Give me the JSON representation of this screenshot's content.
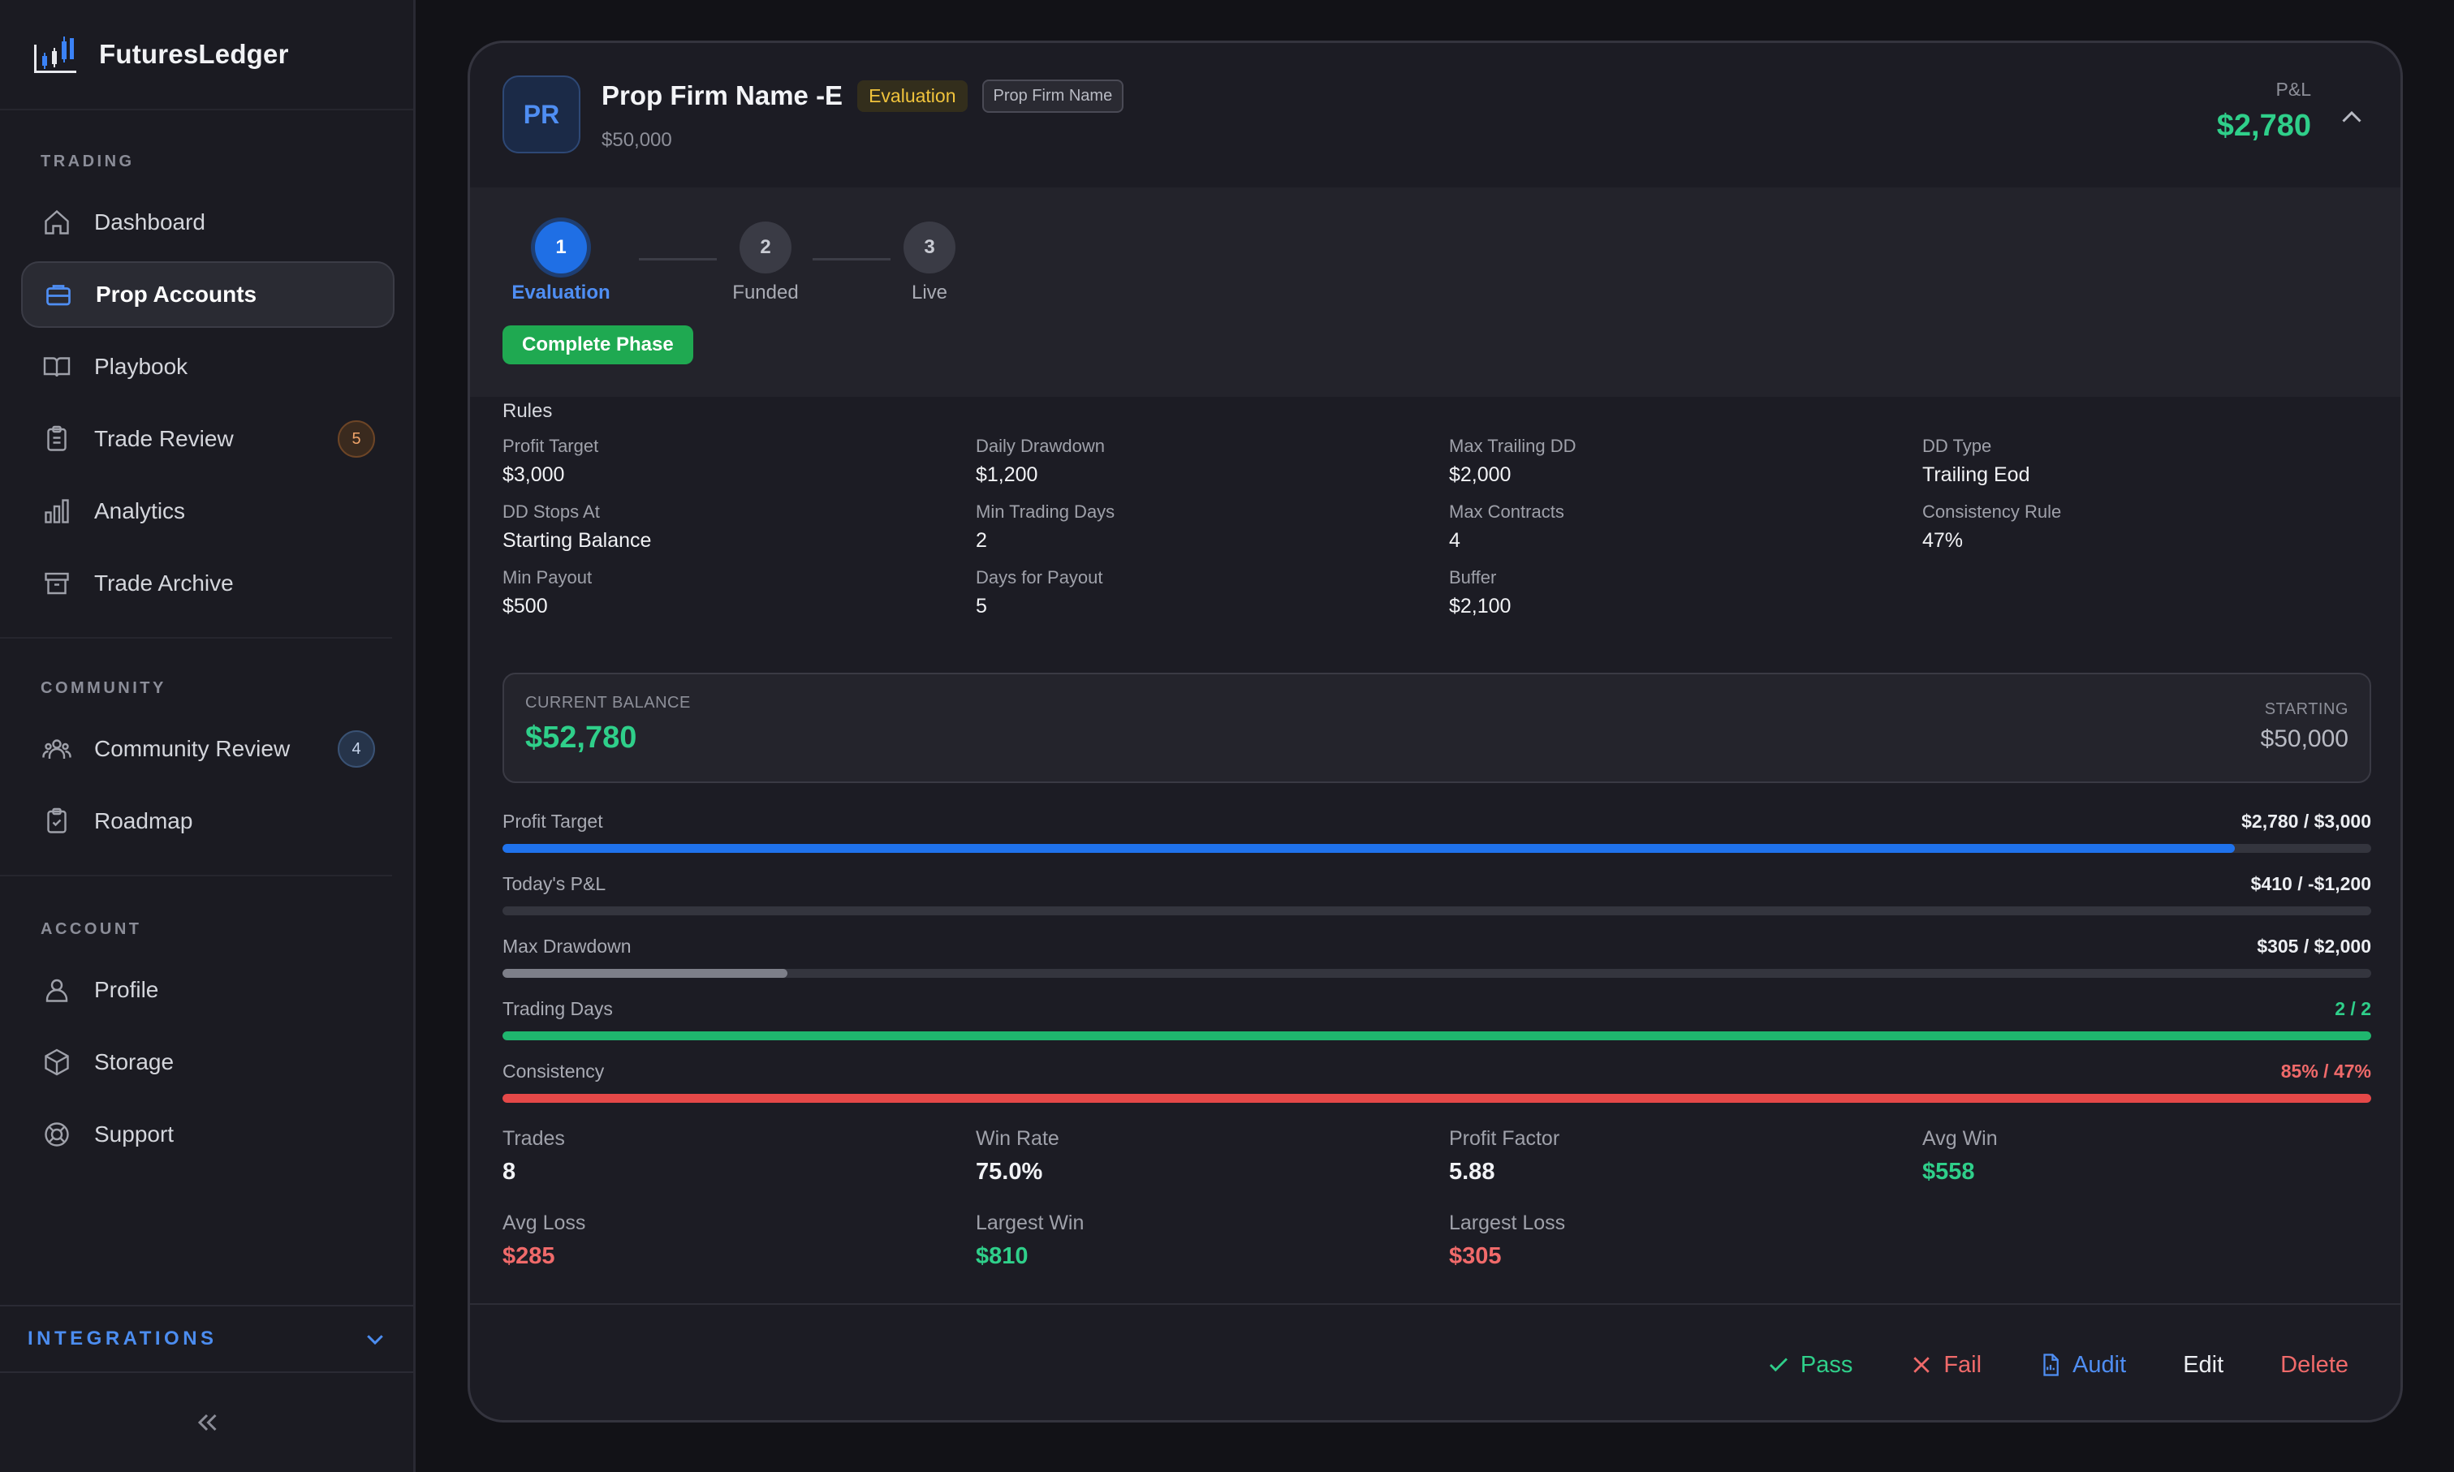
{
  "app": {
    "name": "FuturesLedger"
  },
  "sidebar": {
    "sections": [
      {
        "label": "TRADING",
        "items": [
          {
            "label": "Dashboard",
            "icon": "home-icon"
          },
          {
            "label": "Prop Accounts",
            "icon": "briefcase-icon",
            "active": true
          },
          {
            "label": "Playbook",
            "icon": "book-icon"
          },
          {
            "label": "Trade Review",
            "icon": "clipboard-icon",
            "badge": "5"
          },
          {
            "label": "Analytics",
            "icon": "bar-chart-icon"
          },
          {
            "label": "Trade Archive",
            "icon": "archive-icon"
          }
        ]
      },
      {
        "label": "COMMUNITY",
        "items": [
          {
            "label": "Community Review",
            "icon": "users-icon",
            "badge": "4"
          },
          {
            "label": "Roadmap",
            "icon": "clipboard-check-icon"
          }
        ]
      },
      {
        "label": "ACCOUNT",
        "items": [
          {
            "label": "Profile",
            "icon": "user-icon"
          },
          {
            "label": "Storage",
            "icon": "box-icon"
          },
          {
            "label": "Support",
            "icon": "lifebuoy-icon"
          }
        ]
      }
    ],
    "integrations_label": "INTEGRATIONS"
  },
  "account": {
    "avatar": "PR",
    "name": "Prop Firm Name -E",
    "phase_tag": "Evaluation",
    "firm_tag": "Prop Firm Name",
    "size": "$50,000",
    "pnl_label": "P&L",
    "pnl_value": "$2,780"
  },
  "phases": {
    "steps": [
      {
        "num": "1",
        "label": "Evaluation",
        "active": true
      },
      {
        "num": "2",
        "label": "Funded"
      },
      {
        "num": "3",
        "label": "Live"
      }
    ],
    "complete_label": "Complete Phase"
  },
  "rules": {
    "title": "Rules",
    "items": [
      {
        "k": "Profit Target",
        "v": "$3,000"
      },
      {
        "k": "Daily Drawdown",
        "v": "$1,200"
      },
      {
        "k": "Max Trailing DD",
        "v": "$2,000"
      },
      {
        "k": "DD Type",
        "v": "Trailing Eod"
      },
      {
        "k": "DD Stops At",
        "v": "Starting Balance"
      },
      {
        "k": "Min Trading Days",
        "v": "2"
      },
      {
        "k": "Max Contracts",
        "v": "4"
      },
      {
        "k": "Consistency Rule",
        "v": "47%"
      },
      {
        "k": "Min Payout",
        "v": "$500"
      },
      {
        "k": "Days for Payout",
        "v": "5"
      },
      {
        "k": "Buffer",
        "v": "$2,100"
      }
    ]
  },
  "balance": {
    "current_label": "CURRENT BALANCE",
    "current_value": "$52,780",
    "starting_label": "STARTING",
    "starting_value": "$50,000"
  },
  "progress": [
    {
      "label": "Profit Target",
      "value": "$2,780 / $3,000",
      "fraction": 0.927,
      "color": "#1f72ec",
      "value_color": "#eceef2"
    },
    {
      "label": "Today's P&L",
      "value": "$410 / -$1,200",
      "fraction": 0,
      "color": "#34353e",
      "value_color": "#eceef2"
    },
    {
      "label": "Max Drawdown",
      "value": "$305 / $2,000",
      "fraction": 0.1525,
      "color": "#7d7f89",
      "value_color": "#eceef2"
    },
    {
      "label": "Trading Days",
      "value": "2 / 2",
      "fraction": 1.0,
      "color": "#1fb66e",
      "value_color": "#2fcf8a"
    },
    {
      "label": "Consistency",
      "value": "85% / 47%",
      "fraction": 1.0,
      "color": "#e54848",
      "value_color": "#f06a6a"
    }
  ],
  "stats": [
    {
      "k": "Trades",
      "v": "8",
      "color": "#f1f2f5"
    },
    {
      "k": "Win Rate",
      "v": "75.0%",
      "color": "#f1f2f5"
    },
    {
      "k": "Profit Factor",
      "v": "5.88",
      "color": "#f1f2f5"
    },
    {
      "k": "Avg Win",
      "v": "$558",
      "color": "#2fcf8a"
    },
    {
      "k": "Avg Loss",
      "v": "$285",
      "color": "#f06a6a"
    },
    {
      "k": "Largest Win",
      "v": "$810",
      "color": "#2fcf8a"
    },
    {
      "k": "Largest Loss",
      "v": "$305",
      "color": "#f06a6a"
    }
  ],
  "actions": {
    "pass": "Pass",
    "fail": "Fail",
    "audit": "Audit",
    "edit": "Edit",
    "delete": "Delete"
  }
}
